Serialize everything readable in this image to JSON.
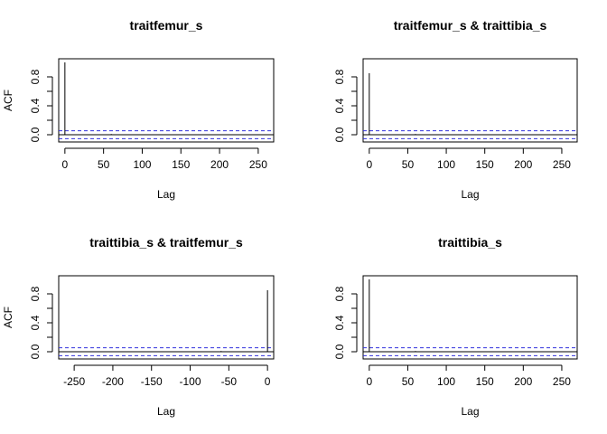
{
  "chart_data": [
    {
      "type": "acf",
      "title": "traitfemur_s",
      "xlabel": "Lag",
      "ylabel": "ACF",
      "xlim": [
        -8,
        270
      ],
      "ylim": [
        -0.1,
        1.05
      ],
      "xticks": [
        0,
        50,
        100,
        150,
        200,
        250
      ],
      "yticks": [
        0.0,
        0.2,
        0.4,
        0.6,
        0.8
      ],
      "ytick_labels": [
        "0.0",
        "",
        "0.4",
        "",
        "0.8"
      ],
      "ci": 0.055,
      "lags": [
        0,
        60,
        120,
        180,
        240
      ],
      "values": [
        1.0,
        0.01,
        -0.005,
        0.005,
        0.005
      ]
    },
    {
      "type": "acf",
      "title": "traitfemur_s & traittibia_s",
      "xlabel": "Lag",
      "ylabel": "",
      "xlim": [
        -8,
        270
      ],
      "ylim": [
        -0.1,
        1.05
      ],
      "xticks": [
        0,
        50,
        100,
        150,
        200,
        250
      ],
      "yticks": [
        0.0,
        0.2,
        0.4,
        0.6,
        0.8
      ],
      "ytick_labels": [
        "0.0",
        "",
        "0.4",
        "",
        "0.8"
      ],
      "ci": 0.055,
      "lags": [
        0,
        60,
        120,
        180,
        240
      ],
      "values": [
        0.85,
        0.01,
        -0.005,
        0.005,
        0.005
      ]
    },
    {
      "type": "acf",
      "title": "traittibia_s & traitfemur_s",
      "xlabel": "Lag",
      "ylabel": "ACF",
      "xlim": [
        -270,
        8
      ],
      "ylim": [
        -0.1,
        1.05
      ],
      "xticks": [
        -250,
        -200,
        -150,
        -100,
        -50,
        0
      ],
      "yticks": [
        0.0,
        0.2,
        0.4,
        0.6,
        0.8
      ],
      "ytick_labels": [
        "0.0",
        "",
        "0.4",
        "",
        "0.8"
      ],
      "ci": 0.055,
      "lags": [
        -240,
        -180,
        -120,
        -60,
        0
      ],
      "values": [
        0.005,
        0.005,
        -0.005,
        0.01,
        0.85
      ]
    },
    {
      "type": "acf",
      "title": "traittibia_s",
      "xlabel": "Lag",
      "ylabel": "",
      "xlim": [
        -8,
        270
      ],
      "ylim": [
        -0.1,
        1.05
      ],
      "xticks": [
        0,
        50,
        100,
        150,
        200,
        250
      ],
      "yticks": [
        0.0,
        0.2,
        0.4,
        0.6,
        0.8
      ],
      "ytick_labels": [
        "0.0",
        "",
        "0.4",
        "",
        "0.8"
      ],
      "ci": 0.055,
      "lags": [
        0,
        60,
        120,
        180,
        240
      ],
      "values": [
        1.0,
        0.01,
        -0.005,
        0.005,
        0.005
      ]
    }
  ],
  "colors": {
    "ci_line": "#3333dd",
    "axis": "#000000",
    "spike": "#000000"
  }
}
